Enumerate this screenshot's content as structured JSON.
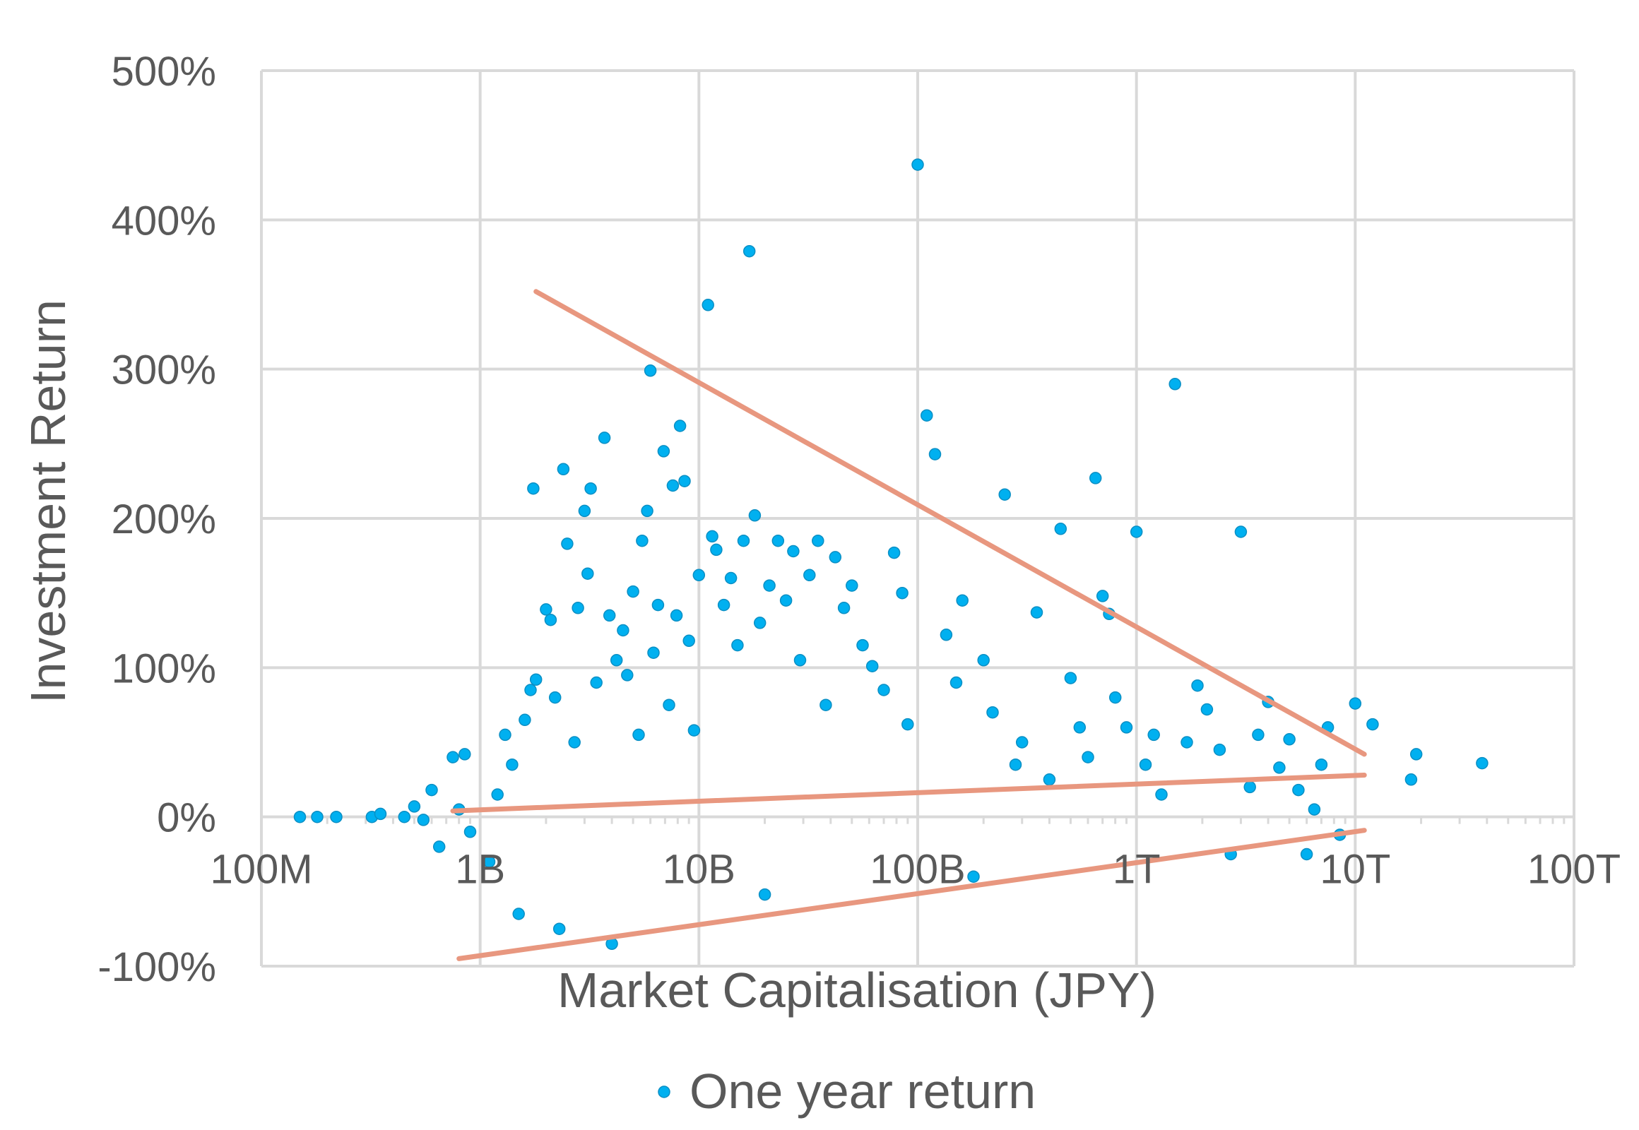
{
  "chart_data": {
    "type": "scatter",
    "title": "",
    "xlabel": "Market Capitalisation (JPY)",
    "ylabel": "Investment Return",
    "x_scale": "log",
    "xlim": [
      100000000,
      100000000000000
    ],
    "ylim": [
      -1.0,
      5.0
    ],
    "x_ticks": [
      {
        "value": 100000000,
        "label": "100M"
      },
      {
        "value": 1000000000,
        "label": "1B"
      },
      {
        "value": 10000000000,
        "label": "10B"
      },
      {
        "value": 100000000000,
        "label": "100B"
      },
      {
        "value": 1000000000000,
        "label": "1T"
      },
      {
        "value": 10000000000000,
        "label": "10T"
      },
      {
        "value": 100000000000000,
        "label": "100T"
      }
    ],
    "y_ticks": [
      {
        "value": -1.0,
        "label": "-100%"
      },
      {
        "value": 0.0,
        "label": "0%"
      },
      {
        "value": 1.0,
        "label": "100%"
      },
      {
        "value": 2.0,
        "label": "200%"
      },
      {
        "value": 3.0,
        "label": "300%"
      },
      {
        "value": 4.0,
        "label": "400%"
      },
      {
        "value": 5.0,
        "label": "500%"
      }
    ],
    "grid": true,
    "legend": {
      "position": "bottom"
    },
    "colors": {
      "points": "#00b0f0",
      "point_outline": "#0a8fc4",
      "trend": "#e8977f",
      "grid": "#d9d9d9",
      "text": "#595959"
    },
    "series": [
      {
        "name": "One year return",
        "type": "scatter",
        "points": [
          [
            150000000,
            0.0
          ],
          [
            180000000,
            0.0
          ],
          [
            220000000,
            0.0
          ],
          [
            320000000,
            0.0
          ],
          [
            350000000,
            0.02
          ],
          [
            450000000,
            0.0
          ],
          [
            500000000,
            0.07
          ],
          [
            550000000,
            -0.02
          ],
          [
            600000000,
            0.18
          ],
          [
            650000000,
            -0.2
          ],
          [
            750000000,
            0.4
          ],
          [
            800000000,
            0.05
          ],
          [
            850000000,
            0.42
          ],
          [
            900000000,
            -0.1
          ],
          [
            1100000000,
            -0.3
          ],
          [
            1200000000,
            0.15
          ],
          [
            1300000000,
            0.55
          ],
          [
            1400000000,
            0.35
          ],
          [
            1500000000,
            -0.65
          ],
          [
            1600000000,
            0.65
          ],
          [
            1700000000,
            0.85
          ],
          [
            1750000000,
            2.2
          ],
          [
            1800000000,
            0.92
          ],
          [
            2000000000,
            1.39
          ],
          [
            2100000000,
            1.32
          ],
          [
            2200000000,
            0.8
          ],
          [
            2300000000,
            -0.75
          ],
          [
            2400000000,
            2.33
          ],
          [
            2500000000,
            1.83
          ],
          [
            2700000000,
            0.5
          ],
          [
            2800000000,
            1.4
          ],
          [
            3000000000,
            2.05
          ],
          [
            3100000000,
            1.63
          ],
          [
            3200000000,
            2.2
          ],
          [
            3400000000,
            0.9
          ],
          [
            3700000000,
            2.54
          ],
          [
            3900000000,
            1.35
          ],
          [
            4000000000,
            -0.85
          ],
          [
            4200000000,
            1.05
          ],
          [
            4500000000,
            1.25
          ],
          [
            4700000000,
            0.95
          ],
          [
            5000000000,
            1.51
          ],
          [
            5300000000,
            0.55
          ],
          [
            5500000000,
            1.85
          ],
          [
            5800000000,
            2.05
          ],
          [
            6000000000,
            2.99
          ],
          [
            6200000000,
            1.1
          ],
          [
            6500000000,
            1.42
          ],
          [
            6900000000,
            2.45
          ],
          [
            7300000000,
            0.75
          ],
          [
            7600000000,
            2.22
          ],
          [
            7900000000,
            1.35
          ],
          [
            8200000000,
            2.62
          ],
          [
            8600000000,
            2.25
          ],
          [
            9000000000,
            1.18
          ],
          [
            9500000000,
            0.58
          ],
          [
            10000000000,
            1.62
          ],
          [
            11000000000,
            3.43
          ],
          [
            11500000000,
            1.88
          ],
          [
            12000000000,
            1.79
          ],
          [
            13000000000,
            1.42
          ],
          [
            14000000000,
            1.6
          ],
          [
            15000000000,
            1.15
          ],
          [
            16000000000,
            1.85
          ],
          [
            17000000000,
            3.79
          ],
          [
            18000000000,
            2.02
          ],
          [
            19000000000,
            1.3
          ],
          [
            20000000000,
            -0.52
          ],
          [
            21000000000,
            1.55
          ],
          [
            23000000000,
            1.85
          ],
          [
            25000000000,
            1.45
          ],
          [
            27000000000,
            1.78
          ],
          [
            29000000000,
            1.05
          ],
          [
            32000000000,
            1.62
          ],
          [
            35000000000,
            1.85
          ],
          [
            38000000000,
            0.75
          ],
          [
            42000000000,
            1.74
          ],
          [
            46000000000,
            1.4
          ],
          [
            50000000000,
            1.55
          ],
          [
            56000000000,
            1.15
          ],
          [
            62000000000,
            1.01
          ],
          [
            70000000000,
            0.85
          ],
          [
            78000000000,
            1.77
          ],
          [
            85000000000,
            1.5
          ],
          [
            90000000000,
            0.62
          ],
          [
            100000000000,
            4.37
          ],
          [
            110000000000,
            2.69
          ],
          [
            120000000000,
            2.43
          ],
          [
            135000000000,
            1.22
          ],
          [
            150000000000,
            0.9
          ],
          [
            160000000000,
            1.45
          ],
          [
            180000000000,
            -0.4
          ],
          [
            200000000000,
            1.05
          ],
          [
            220000000000,
            0.7
          ],
          [
            250000000000,
            2.16
          ],
          [
            280000000000,
            0.35
          ],
          [
            300000000000,
            0.5
          ],
          [
            350000000000,
            1.37
          ],
          [
            400000000000,
            0.25
          ],
          [
            450000000000,
            1.93
          ],
          [
            500000000000,
            0.93
          ],
          [
            550000000000,
            0.6
          ],
          [
            600000000000,
            0.4
          ],
          [
            650000000000,
            2.27
          ],
          [
            700000000000,
            1.48
          ],
          [
            750000000000,
            1.36
          ],
          [
            800000000000,
            0.8
          ],
          [
            900000000000,
            0.6
          ],
          [
            1000000000000,
            1.91
          ],
          [
            1100000000000,
            0.35
          ],
          [
            1200000000000,
            0.55
          ],
          [
            1300000000000,
            0.15
          ],
          [
            1500000000000,
            2.9
          ],
          [
            1700000000000,
            0.5
          ],
          [
            1900000000000,
            0.88
          ],
          [
            2100000000000,
            0.72
          ],
          [
            2400000000000,
            0.45
          ],
          [
            2700000000000,
            -0.25
          ],
          [
            3000000000000,
            1.91
          ],
          [
            3300000000000,
            0.2
          ],
          [
            3600000000000,
            0.55
          ],
          [
            4000000000000,
            0.77
          ],
          [
            4500000000000,
            0.33
          ],
          [
            5000000000000,
            0.52
          ],
          [
            5500000000000,
            0.18
          ],
          [
            6000000000000,
            -0.25
          ],
          [
            6500000000000,
            0.05
          ],
          [
            7000000000000,
            0.35
          ],
          [
            7500000000000,
            0.6
          ],
          [
            8500000000000,
            -0.12
          ],
          [
            10000000000000,
            0.76
          ],
          [
            12000000000000,
            0.62
          ],
          [
            18000000000000,
            0.25
          ],
          [
            19000000000000,
            0.42
          ],
          [
            38000000000000,
            0.36
          ]
        ]
      },
      {
        "name": "",
        "type": "line",
        "x": [
          1800000000,
          11000000000000
        ],
        "y": [
          3.52,
          0.42
        ]
      },
      {
        "name": "",
        "type": "line",
        "x": [
          750000000,
          11000000000000
        ],
        "y": [
          0.04,
          0.28
        ]
      },
      {
        "name": "",
        "type": "line",
        "x": [
          800000000,
          11000000000000
        ],
        "y": [
          -0.95,
          -0.09
        ]
      }
    ]
  }
}
